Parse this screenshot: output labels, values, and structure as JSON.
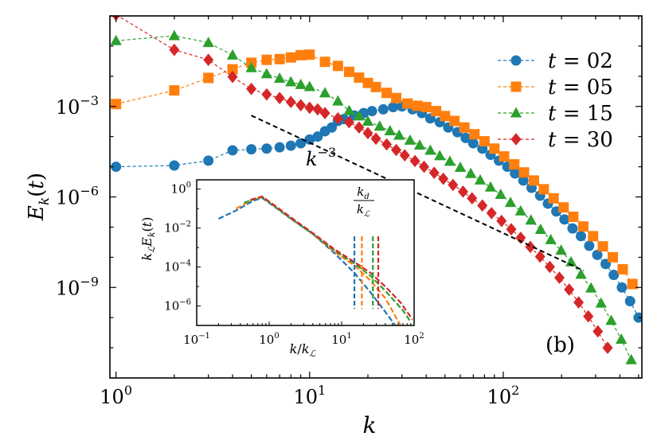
{
  "chart_data": [
    {
      "type": "line",
      "xscale": "log",
      "yscale": "log",
      "xlabel": "k",
      "ylabel": "E_k(t)",
      "xlim": [
        0.93,
        520
      ],
      "ylim": [
        1e-12,
        1.0
      ],
      "xticks": [
        {
          "value": 1,
          "base": "10",
          "exp": "0"
        },
        {
          "value": 10,
          "base": "10",
          "exp": "1"
        },
        {
          "value": 100,
          "base": "10",
          "exp": "2"
        }
      ],
      "yticks": [
        {
          "value": 0.001,
          "base": "10",
          "exp": "−3"
        },
        {
          "value": 1e-06,
          "base": "10",
          "exp": "−6"
        },
        {
          "value": 1e-09,
          "base": "10",
          "exp": "−9"
        }
      ],
      "panel_label": "(b)",
      "legend": {
        "placement": "top-right",
        "prefix": "t = "
      },
      "reference_line": {
        "label": "k",
        "label_exp": "−3",
        "x": [
          5,
          260
        ],
        "y": [
          0.0005,
          3.6e-09
        ]
      },
      "series": [
        {
          "name": "02",
          "color": "#1f77b4",
          "marker": "circle",
          "x": [
            1,
            2,
            3,
            4,
            5,
            6,
            7,
            8,
            9,
            10,
            11,
            12,
            13,
            14,
            15,
            17,
            19,
            21,
            24,
            27,
            30,
            34,
            38,
            42,
            47,
            52,
            58,
            64,
            70,
            78,
            86,
            95,
            105,
            115,
            127,
            140,
            155,
            170,
            188,
            207,
            228,
            252,
            278,
            306,
            338,
            372,
            410,
            452,
            500
          ],
          "y": [
            1e-05,
            1.1e-05,
            1.6e-05,
            3.5e-05,
            3.8e-05,
            4e-05,
            4.4e-05,
            5e-05,
            6e-05,
            8e-05,
            0.0001,
            0.00015,
            0.0002,
            0.00033,
            0.00038,
            0.0005,
            0.0006,
            0.0007,
            0.0008,
            0.00095,
            0.001,
            0.0008,
            0.0006,
            0.0004,
            0.0003,
            0.0002,
            0.00014,
            9e-05,
            6e-05,
            4e-05,
            2.5e-05,
            1.6e-05,
            1e-05,
            6e-06,
            3.5e-06,
            2e-06,
            1.1e-06,
            6e-07,
            3.3e-07,
            1.8e-07,
            9e-08,
            5e-08,
            2.4e-08,
            1.2e-08,
            6e-09,
            2.6e-09,
            1e-09,
            3.5e-10,
            1e-10
          ]
        },
        {
          "name": "05",
          "color": "#ff7f0e",
          "marker": "square",
          "x": [
            1,
            2,
            3,
            4,
            5,
            6,
            7,
            8,
            9,
            10,
            12,
            14,
            16,
            18,
            20,
            22,
            25,
            28,
            32,
            36,
            40,
            45,
            50,
            56,
            63,
            71,
            80,
            90,
            101,
            114,
            128,
            144,
            162,
            182,
            205,
            230,
            259,
            291,
            327,
            368,
            414,
            465
          ],
          "y": [
            0.0012,
            0.0034,
            0.0088,
            0.017,
            0.028,
            0.035,
            0.037,
            0.042,
            0.05,
            0.052,
            0.03,
            0.022,
            0.014,
            0.009,
            0.006,
            0.0044,
            0.0028,
            0.0019,
            0.00125,
            0.00105,
            0.00095,
            0.0007,
            0.00048,
            0.00033,
            0.0002,
            0.00012,
            7e-05,
            4e-05,
            2.2e-05,
            1.2e-05,
            6.5e-06,
            3.5e-06,
            1.8e-06,
            9e-07,
            4.5e-07,
            2.2e-07,
            1.05e-07,
            5e-08,
            2.3e-08,
            1e-08,
            4e-09,
            1.3e-09
          ]
        },
        {
          "name": "15",
          "color": "#2ca02c",
          "marker": "triangle",
          "x": [
            1,
            2,
            3,
            4,
            5,
            6,
            7,
            8,
            9,
            10,
            12,
            14,
            16,
            18,
            20,
            23,
            26,
            29,
            33,
            37,
            42,
            47,
            53,
            60,
            68,
            76,
            86,
            97,
            109,
            123,
            139,
            156,
            176,
            199,
            224,
            252,
            284,
            320,
            361,
            407,
            458
          ],
          "y": [
            0.15,
            0.22,
            0.13,
            0.05,
            0.019,
            0.012,
            0.0085,
            0.0065,
            0.0053,
            0.0045,
            0.0028,
            0.0015,
            0.00072,
            0.00048,
            0.00032,
            0.00022,
            0.000155,
            0.00011,
            7.5e-05,
            5.2e-05,
            3.5e-05,
            2.3e-05,
            1.5e-05,
            9.5e-06,
            5.9e-06,
            3.6e-06,
            2.1e-06,
            1.2e-06,
            6.5e-07,
            3.4e-07,
            1.7e-07,
            8.3e-08,
            3.8e-08,
            1.7e-08,
            7e-09,
            2.7e-09,
            9.5e-10,
            3e-10,
            8e-11,
            1.9e-11,
            4e-12
          ]
        },
        {
          "name": "30",
          "color": "#d62728",
          "marker": "diamond",
          "x": [
            1,
            2,
            3,
            4,
            5,
            6,
            7,
            8,
            9,
            10,
            11,
            12,
            14,
            16,
            18,
            20,
            22,
            25,
            28,
            31,
            35,
            39,
            44,
            49,
            55,
            62,
            69,
            78,
            87,
            98,
            110,
            123,
            138,
            155,
            174,
            195,
            219,
            245,
            275,
            308,
            346
          ],
          "y": [
            1.1,
            0.075,
            0.035,
            0.0095,
            0.0038,
            0.0025,
            0.0019,
            0.0014,
            0.0011,
            0.0009,
            0.0008,
            0.0006,
            0.0004,
            0.0003,
            0.0002,
            0.00013,
            8.5e-05,
            5.5e-05,
            3.6e-05,
            2.4e-05,
            1.55e-05,
            1e-05,
            6.3e-06,
            4e-06,
            2.5e-06,
            1.5e-06,
            9e-07,
            5.2e-07,
            2.9e-07,
            1.6e-07,
            8.5e-08,
            4.4e-08,
            2.2e-08,
            1.05e-08,
            4.8e-09,
            2.1e-09,
            8.5e-10,
            3.2e-10,
            1.1e-10,
            3.5e-11,
            1e-11
          ]
        }
      ]
    },
    {
      "type": "line",
      "inset": true,
      "xscale": "log",
      "yscale": "log",
      "xlabel": "k/k_L",
      "ylabel": "k_L E_k(t)",
      "xlim": [
        0.1,
        100
      ],
      "ylim": [
        1e-07,
        3
      ],
      "xticks": [
        {
          "value": 0.1,
          "base": "10",
          "exp": "−1"
        },
        {
          "value": 1,
          "base": "10",
          "exp": "0"
        },
        {
          "value": 10,
          "base": "10",
          "exp": "1"
        },
        {
          "value": 100,
          "base": "10",
          "exp": "2"
        }
      ],
      "yticks": [
        {
          "value": 1,
          "base": "10",
          "exp": "0"
        },
        {
          "value": 0.01,
          "base": "10",
          "exp": "−2"
        },
        {
          "value": 0.0001,
          "base": "10",
          "exp": "−4"
        },
        {
          "value": 1e-06,
          "base": "10",
          "exp": "−6"
        }
      ],
      "annotation": {
        "num": "k_d",
        "den": "k_L"
      },
      "series": [
        {
          "name": "02",
          "color": "#1f77b4",
          "x": [
            0.2,
            0.35,
            0.6,
            0.8,
            1.2,
            2,
            4,
            8,
            15,
            25,
            40,
            55
          ],
          "y": [
            0.03,
            0.08,
            0.25,
            0.35,
            0.12,
            0.03,
            0.005,
            0.0005,
            5e-05,
            5e-06,
            5e-07,
            1e-07
          ],
          "kd": 15
        },
        {
          "name": "05",
          "color": "#ff7f0e",
          "x": [
            0.35,
            0.6,
            0.8,
            1.2,
            2,
            4,
            8,
            15,
            25,
            40,
            65
          ],
          "y": [
            0.1,
            0.3,
            0.38,
            0.13,
            0.03,
            0.005,
            0.0006,
            0.00012,
            2e-05,
            2.5e-06,
            1e-07
          ],
          "kd": 19
        },
        {
          "name": "15",
          "color": "#2ca02c",
          "x": [
            0.45,
            0.7,
            0.8,
            1.2,
            2,
            4,
            8,
            15,
            25,
            40,
            70,
            90
          ],
          "y": [
            0.2,
            0.35,
            0.4,
            0.13,
            0.03,
            0.005,
            0.0007,
            0.00015,
            3.5e-05,
            6e-06,
            6e-07,
            1.5e-07
          ],
          "kd": 27
        },
        {
          "name": "30",
          "color": "#d62728",
          "x": [
            0.55,
            0.8,
            1.2,
            2,
            4,
            8,
            15,
            25,
            40,
            65,
            95
          ],
          "y": [
            0.28,
            0.42,
            0.14,
            0.035,
            0.0055,
            0.0008,
            0.00018,
            5e-05,
            1e-05,
            1.5e-06,
            2e-07
          ],
          "kd": 32
        }
      ]
    }
  ]
}
